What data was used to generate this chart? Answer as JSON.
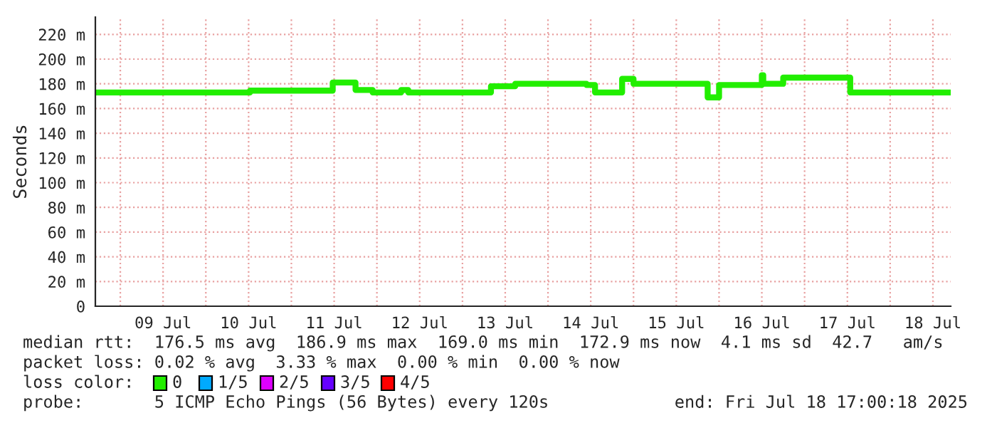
{
  "chart_data": {
    "type": "step",
    "ylabel": "Seconds",
    "x": [
      "2025-07-08T17:00",
      "2025-07-10T12:24",
      "2025-07-11T11:36",
      "2025-07-11T18:00",
      "2025-07-11T22:48",
      "2025-07-12T06:48",
      "2025-07-12T08:48",
      "2025-07-13T08:00",
      "2025-07-13T14:48",
      "2025-07-14T10:48",
      "2025-07-14T13:12",
      "2025-07-14T20:48",
      "2025-07-15T00:00",
      "2025-07-15T20:48",
      "2025-07-16T00:00",
      "2025-07-16T12:00",
      "2025-07-16T12:24",
      "2025-07-16T18:00",
      "2025-07-17T12:48",
      "2025-07-18T16:48"
    ],
    "series": [
      {
        "color": "#22ee00",
        "values": [
          173,
          174.5,
          181,
          175,
          173,
          175,
          173,
          178,
          180,
          179,
          173,
          184,
          180,
          169,
          179,
          187,
          180,
          185,
          173,
          173
        ]
      }
    ],
    "xlim": [
      "2025-07-08T17:00",
      "2025-07-18T17:00"
    ],
    "xticks": [
      {
        "value": "2025-07-09T00:00",
        "label": null
      },
      {
        "value": "2025-07-09T12:00",
        "label": "09 Jul"
      },
      {
        "value": "2025-07-10T00:00",
        "label": null
      },
      {
        "value": "2025-07-10T12:00",
        "label": "10 Jul"
      },
      {
        "value": "2025-07-11T00:00",
        "label": null
      },
      {
        "value": "2025-07-11T12:00",
        "label": "11 Jul"
      },
      {
        "value": "2025-07-12T00:00",
        "label": null
      },
      {
        "value": "2025-07-12T12:00",
        "label": "12 Jul"
      },
      {
        "value": "2025-07-13T00:00",
        "label": null
      },
      {
        "value": "2025-07-13T12:00",
        "label": "13 Jul"
      },
      {
        "value": "2025-07-14T00:00",
        "label": null
      },
      {
        "value": "2025-07-14T12:00",
        "label": "14 Jul"
      },
      {
        "value": "2025-07-15T00:00",
        "label": null
      },
      {
        "value": "2025-07-15T12:00",
        "label": "15 Jul"
      },
      {
        "value": "2025-07-16T00:00",
        "label": null
      },
      {
        "value": "2025-07-16T12:00",
        "label": "16 Jul"
      },
      {
        "value": "2025-07-17T00:00",
        "label": null
      },
      {
        "value": "2025-07-17T12:00",
        "label": "17 Jul"
      },
      {
        "value": "2025-07-18T00:00",
        "label": null
      },
      {
        "value": "2025-07-18T12:00",
        "label": "18 Jul"
      }
    ],
    "ylim": [
      0,
      234
    ],
    "yticks": [
      0,
      {
        "value": 20,
        "label": "20 m"
      },
      {
        "value": 40,
        "label": "40 m"
      },
      {
        "value": 60,
        "label": "60 m"
      },
      {
        "value": 80,
        "label": "80 m"
      },
      {
        "value": 100,
        "label": "100 m"
      },
      {
        "value": 120,
        "label": "120 m"
      },
      {
        "value": 140,
        "label": "140 m"
      },
      {
        "value": 160,
        "label": "160 m"
      },
      {
        "value": 180,
        "label": "180 m"
      },
      {
        "value": 200,
        "label": "200 m"
      },
      {
        "value": 220,
        "label": "220 m"
      }
    ],
    "grid": true,
    "line_style": "solid",
    "annotations": [
      "median rtt:  176.5 ms avg  186.9 ms max  169.0 ms min  172.9 ms now  4.1 ms sd  42.7   am/s",
      "packet loss: 0.02 % avg  3.33 % max  0.00 % min  0.00 % now",
      "loss color:",
      "0",
      "1/5",
      "2/5",
      "3/5",
      "4/5",
      "probe:       5 ICMP Echo Pings (56 Bytes) every 120s",
      "end: Fri Jul 18 17:00:18 2025"
    ]
  }
}
